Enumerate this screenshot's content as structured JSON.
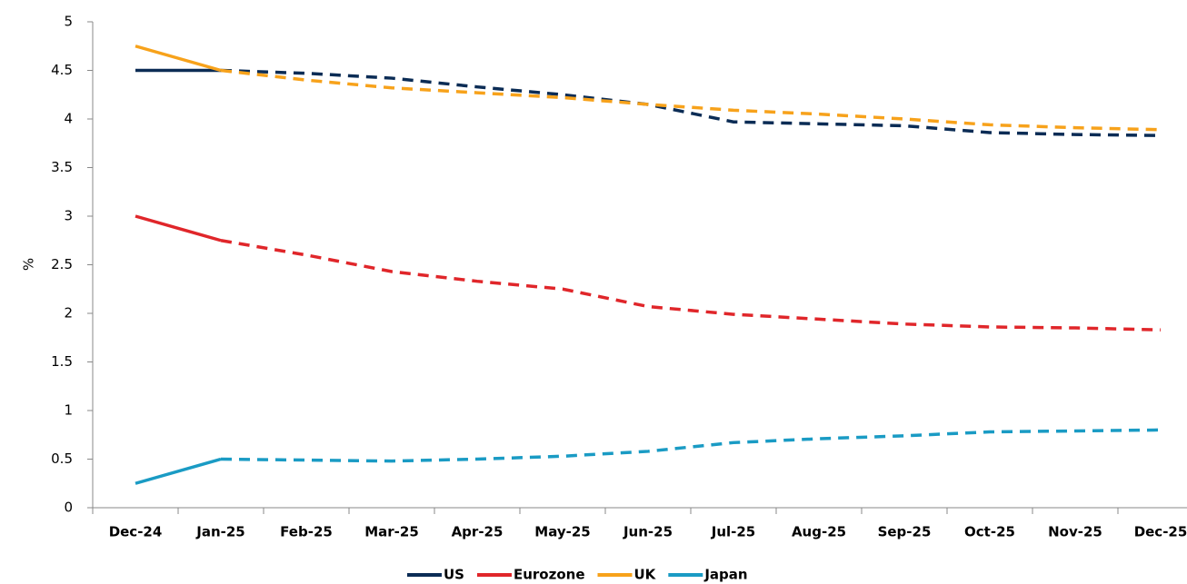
{
  "chart_data": {
    "type": "line",
    "ylabel": "%",
    "categories": [
      "Dec-24",
      "Jan-25",
      "Feb-25",
      "Mar-25",
      "Apr-25",
      "May-25",
      "Jun-25",
      "Jul-25",
      "Aug-25",
      "Sep-25",
      "Oct-25",
      "Nov-25",
      "Dec-25"
    ],
    "dash_from": "Jan-25",
    "series": [
      {
        "name": "US",
        "color": "#0b2c55",
        "values": [
          4.5,
          4.5,
          4.47,
          4.42,
          4.33,
          4.25,
          4.15,
          3.97,
          3.95,
          3.93,
          3.86,
          3.84,
          3.83
        ]
      },
      {
        "name": "Eurozone",
        "color": "#e0262a",
        "values": [
          3.0,
          2.75,
          2.6,
          2.43,
          2.33,
          2.25,
          2.07,
          1.99,
          1.94,
          1.89,
          1.86,
          1.85,
          1.83
        ]
      },
      {
        "name": "UK",
        "color": "#f7a21b",
        "values": [
          4.75,
          4.5,
          4.4,
          4.32,
          4.27,
          4.22,
          4.15,
          4.09,
          4.05,
          4.0,
          3.94,
          3.91,
          3.89
        ]
      },
      {
        "name": "Japan",
        "color": "#1a9bc4",
        "values": [
          0.25,
          0.5,
          0.49,
          0.48,
          0.5,
          0.53,
          0.58,
          0.67,
          0.71,
          0.74,
          0.78,
          0.79,
          0.8
        ]
      }
    ],
    "ylim": [
      0,
      5
    ],
    "yticks": [
      0,
      0.5,
      1,
      1.5,
      2,
      2.5,
      3,
      3.5,
      4,
      4.5,
      5
    ],
    "grid": false,
    "legend": "bottom"
  }
}
